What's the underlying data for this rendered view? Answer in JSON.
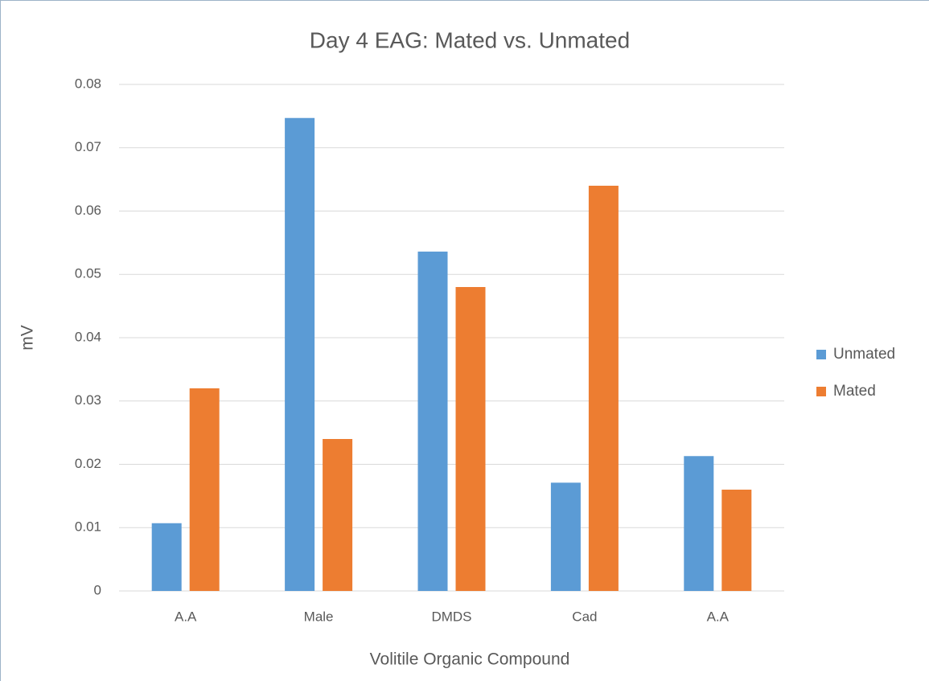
{
  "chart_data": {
    "type": "bar",
    "title": "Day 4 EAG: Mated vs. Unmated",
    "x_label": "Volitile Organic Compound",
    "y_label": "mV",
    "categories": [
      "A.A",
      "Male",
      "DMDS",
      "Cad",
      "A.A"
    ],
    "series": [
      {
        "name": "Unmated",
        "color": "#5b9bd5",
        "values": [
          0.0107,
          0.0747,
          0.0536,
          0.0171,
          0.0213
        ]
      },
      {
        "name": "Mated",
        "color": "#ed7d31",
        "values": [
          0.032,
          0.024,
          0.048,
          0.064,
          0.016
        ]
      }
    ],
    "ylim": [
      0,
      0.08
    ],
    "yticks": [
      0,
      0.01,
      0.02,
      0.03,
      0.04,
      0.05,
      0.06,
      0.07,
      0.08
    ],
    "grid": true,
    "legend": "right"
  }
}
